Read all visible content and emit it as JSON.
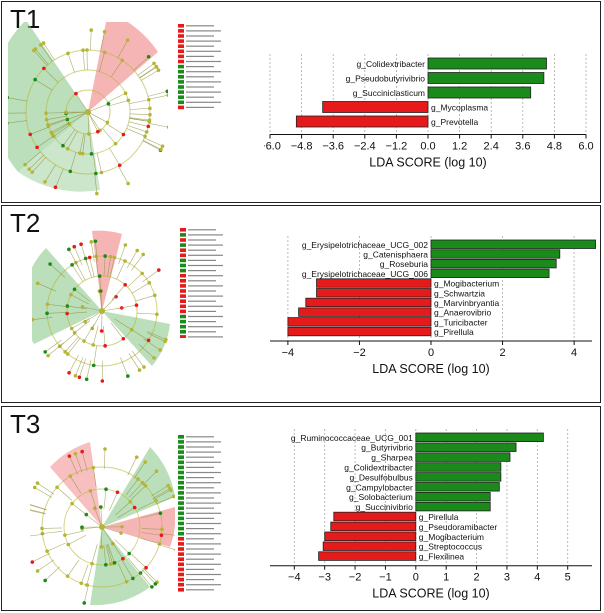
{
  "panels": [
    {
      "id": "T1",
      "label": "T1"
    },
    {
      "id": "T2",
      "label": "T2"
    },
    {
      "id": "T3",
      "label": "T3"
    }
  ],
  "colors": {
    "enriched_high": "#1a8a1a",
    "enriched_low": "#e61a1a",
    "node": "#b5b533",
    "green_shade": "#7dbf7d",
    "red_shade": "#f29595"
  },
  "chart_data": [
    {
      "type": "bar",
      "panel": "T1",
      "xlabel": "LDA SCORE (log 10)",
      "xlim": [
        -6.0,
        6.0
      ],
      "xticks": [
        -6.0,
        -4.8,
        -3.6,
        -2.4,
        -1.2,
        0.0,
        1.2,
        2.4,
        3.6,
        4.8,
        6.0
      ],
      "xtick_labels": [
        "−6.0",
        "−4.8",
        "−3.6",
        "−2.4",
        "−1.2",
        "0.0",
        "1.2",
        "2.4",
        "3.6",
        "4.8",
        "6.0"
      ],
      "bars": [
        {
          "label": "g_Colidextribacter",
          "value": 4.5,
          "color": "green"
        },
        {
          "label": "g_Pseudobutyrivibrio",
          "value": 4.4,
          "color": "green"
        },
        {
          "label": "g_Succiniclasticum",
          "value": 3.9,
          "color": "green"
        },
        {
          "label": "g_Mycoplasma",
          "value": -4.0,
          "color": "red"
        },
        {
          "label": "g_Prevotella",
          "value": -5.0,
          "color": "red"
        }
      ]
    },
    {
      "type": "bar",
      "panel": "T2",
      "xlabel": "LDA SCORE (log 10)",
      "xlim": [
        -4.5,
        4.5
      ],
      "xticks": [
        -4,
        -2,
        0,
        2,
        4
      ],
      "xtick_labels": [
        "−4",
        "−2",
        "0",
        "2",
        "4"
      ],
      "bars": [
        {
          "label": "g_Erysipelotrichaceae_UCG_002",
          "value": 4.6,
          "color": "green"
        },
        {
          "label": "g_Catenisphaera",
          "value": 3.6,
          "color": "green"
        },
        {
          "label": "g_Roseburia",
          "value": 3.5,
          "color": "green"
        },
        {
          "label": "g_Erysipelotrichaceae_UCG_006",
          "value": 3.3,
          "color": "green"
        },
        {
          "label": "g_Mogibacterium",
          "value": -3.2,
          "color": "red"
        },
        {
          "label": "g_Schwartzia",
          "value": -3.2,
          "color": "red"
        },
        {
          "label": "g_Marvinbryantia",
          "value": -3.5,
          "color": "red"
        },
        {
          "label": "g_Anaerovibrio",
          "value": -3.7,
          "color": "red"
        },
        {
          "label": "g_Turicibacter",
          "value": -4.0,
          "color": "red"
        },
        {
          "label": "g_Pirellula",
          "value": -4.0,
          "color": "red"
        }
      ]
    },
    {
      "type": "bar",
      "panel": "T3",
      "xlabel": "LDA SCORE (log 10)",
      "xlim": [
        -4.8,
        5.8
      ],
      "xticks": [
        -4,
        -3,
        -2,
        -1,
        0,
        1,
        2,
        3,
        4,
        5
      ],
      "xtick_labels": [
        "−4",
        "−3",
        "−2",
        "−1",
        "0",
        "1",
        "2",
        "3",
        "4",
        "5"
      ],
      "bars": [
        {
          "label": "g_Ruminococcaceae_UCG_001",
          "value": 4.2,
          "color": "green"
        },
        {
          "label": "g_Butyrivibrio",
          "value": 3.3,
          "color": "green"
        },
        {
          "label": "g_Sharpea",
          "value": 3.1,
          "color": "green"
        },
        {
          "label": "g_Colidextribacter",
          "value": 2.8,
          "color": "green"
        },
        {
          "label": "g_Desulfobulbus",
          "value": 2.8,
          "color": "green"
        },
        {
          "label": "g_Campylobacter",
          "value": 2.75,
          "color": "green"
        },
        {
          "label": "g_Solobacterium",
          "value": 2.45,
          "color": "green"
        },
        {
          "label": "g_Succinivibrio",
          "value": 2.45,
          "color": "green"
        },
        {
          "label": "g_Pirellula",
          "value": -2.7,
          "color": "red"
        },
        {
          "label": "g_Pseudoramibacter",
          "value": -2.8,
          "color": "red"
        },
        {
          "label": "g_Mogibacterium",
          "value": -3.0,
          "color": "red"
        },
        {
          "label": "g_Streptococcus",
          "value": -3.05,
          "color": "red"
        },
        {
          "label": "g_Flexilinea",
          "value": -3.2,
          "color": "red"
        }
      ]
    }
  ]
}
